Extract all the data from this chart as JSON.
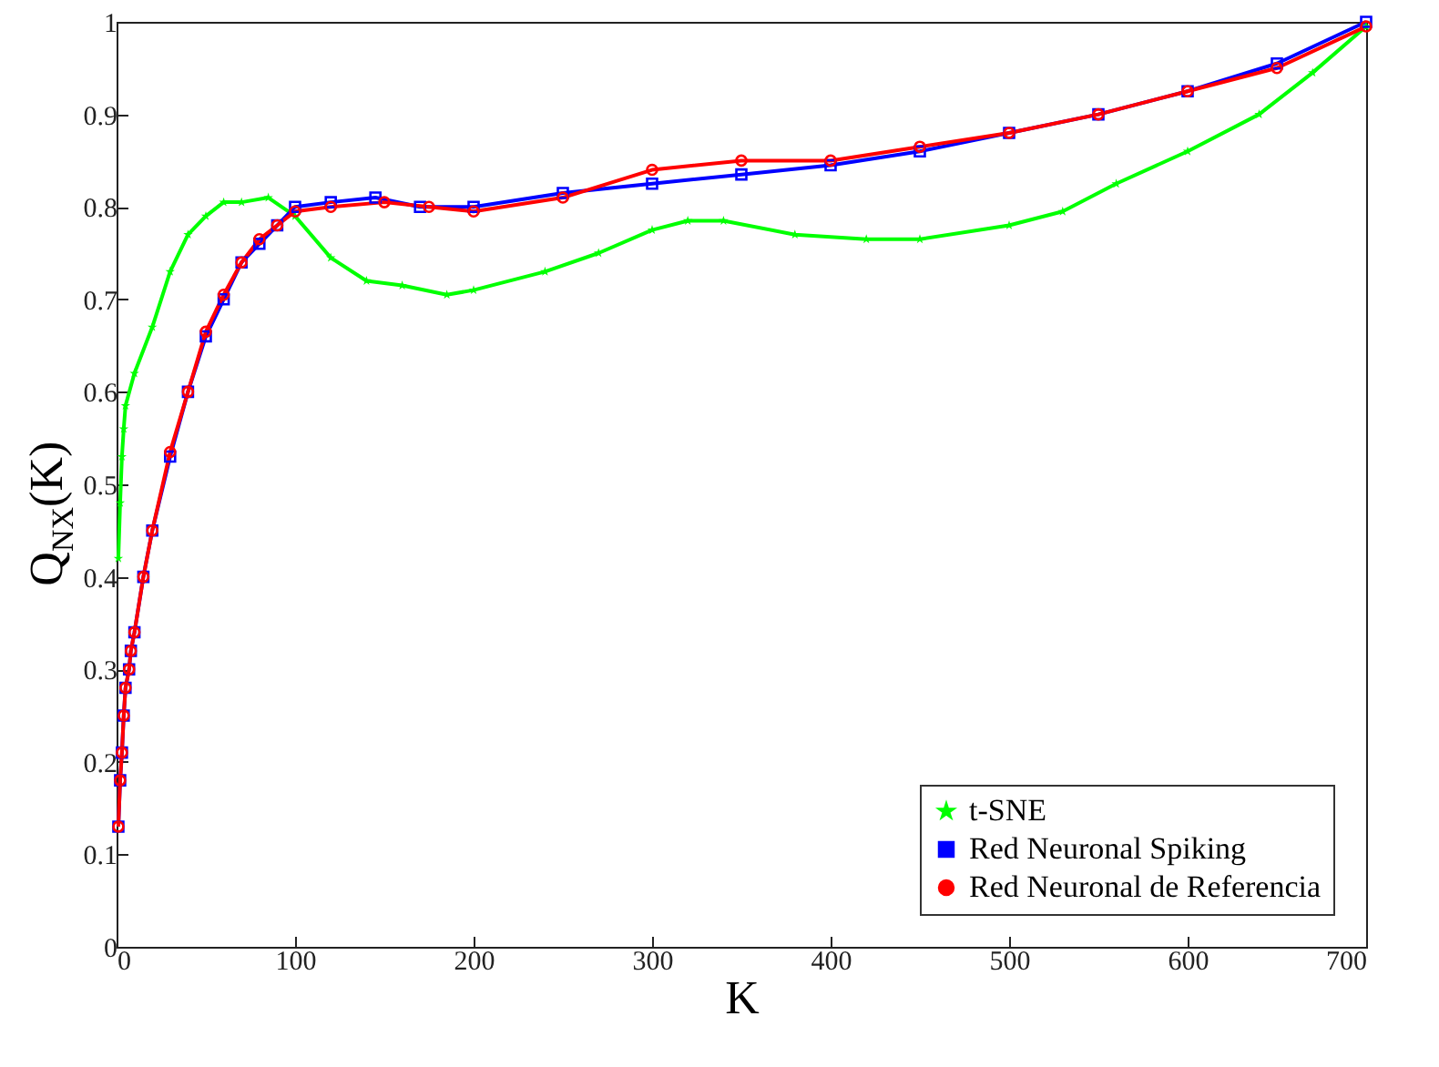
{
  "chart_data": {
    "type": "line",
    "xlabel": "K",
    "ylabel": "Q$_{NX}$(K)",
    "xlim": [
      0,
      700
    ],
    "xticks": [
      0,
      100,
      200,
      300,
      400,
      500,
      600,
      700
    ],
    "ylim": [
      0,
      1
    ],
    "yticks": [
      0,
      0.1,
      0.2,
      0.3,
      0.4,
      0.5,
      0.6,
      0.7,
      0.8,
      0.9,
      1
    ],
    "grid": false,
    "legend": "bottom right",
    "line_style": "solid",
    "series": [
      {
        "name": "t-SNE",
        "color": "#00ff00",
        "marker": "star",
        "x": [
          1,
          2,
          3,
          4,
          5,
          10,
          20,
          30,
          40,
          50,
          60,
          70,
          85,
          100,
          120,
          140,
          160,
          185,
          200,
          240,
          270,
          300,
          320,
          340,
          380,
          420,
          450,
          500,
          530,
          560,
          600,
          640,
          670,
          700
        ],
        "values": [
          0.42,
          0.48,
          0.53,
          0.56,
          0.585,
          0.62,
          0.67,
          0.73,
          0.77,
          0.79,
          0.805,
          0.805,
          0.81,
          0.79,
          0.745,
          0.72,
          0.715,
          0.705,
          0.71,
          0.73,
          0.75,
          0.775,
          0.785,
          0.785,
          0.77,
          0.765,
          0.765,
          0.78,
          0.795,
          0.825,
          0.86,
          0.9,
          0.945,
          0.995
        ]
      },
      {
        "name": "Red Neuronal Spiking",
        "color": "#0000ff",
        "marker": "square",
        "x": [
          1,
          2,
          3,
          4,
          5,
          7,
          8,
          10,
          15,
          20,
          30,
          40,
          50,
          60,
          70,
          80,
          90,
          100,
          120,
          145,
          170,
          200,
          250,
          300,
          350,
          400,
          450,
          500,
          550,
          600,
          650,
          700
        ],
        "values": [
          0.13,
          0.18,
          0.21,
          0.25,
          0.28,
          0.3,
          0.32,
          0.34,
          0.4,
          0.45,
          0.53,
          0.6,
          0.66,
          0.7,
          0.74,
          0.76,
          0.78,
          0.8,
          0.805,
          0.81,
          0.8,
          0.8,
          0.815,
          0.825,
          0.835,
          0.845,
          0.86,
          0.88,
          0.9,
          0.925,
          0.955,
          1.0
        ]
      },
      {
        "name": "Red Neuronal de Referencia",
        "color": "#ff0000",
        "marker": "circle",
        "x": [
          1,
          2,
          3,
          4,
          5,
          7,
          8,
          10,
          15,
          20,
          30,
          40,
          50,
          60,
          70,
          80,
          90,
          100,
          120,
          150,
          175,
          200,
          250,
          300,
          350,
          400,
          450,
          500,
          550,
          600,
          650,
          700
        ],
        "values": [
          0.13,
          0.18,
          0.21,
          0.25,
          0.28,
          0.3,
          0.32,
          0.34,
          0.4,
          0.45,
          0.535,
          0.6,
          0.665,
          0.705,
          0.74,
          0.765,
          0.78,
          0.795,
          0.8,
          0.805,
          0.8,
          0.795,
          0.81,
          0.84,
          0.85,
          0.85,
          0.865,
          0.88,
          0.9,
          0.925,
          0.95,
          0.995
        ]
      }
    ]
  }
}
